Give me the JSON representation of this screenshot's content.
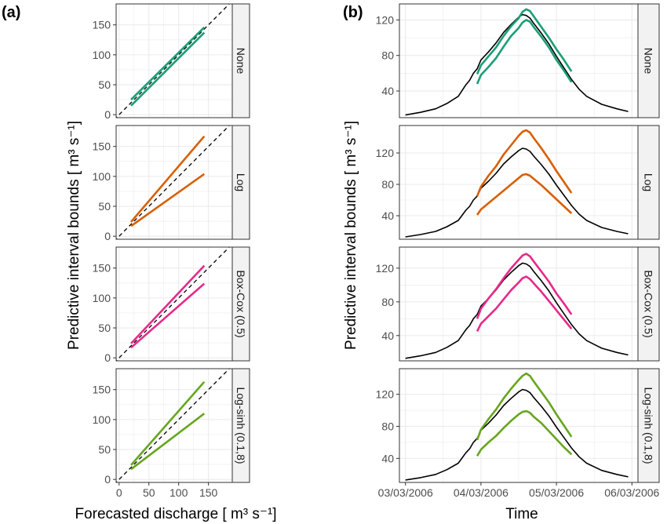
{
  "panel_a_label": "(a)",
  "panel_b_label": "(b)",
  "y_title": "Predictive interval bounds [ m³ s⁻¹]",
  "a_x_title": "Forecasted discharge [ m³ s⁻¹]",
  "b_x_title": "Time",
  "colors": {
    "None": "#1b9e77",
    "Log": "#d95f02",
    "Box-Cox (0.5)": "#e7298a",
    "Log-sinh (0.1,8)": "#66a61e",
    "observed": "#000000",
    "identity": "#000000",
    "grid": "#ebebeb",
    "border": "#333333",
    "strip_fill": "#f2f2f2"
  },
  "chart_data": [
    {
      "type": "line",
      "panel": "(a)",
      "xlabel": "Forecasted discharge [ m³ s⁻¹]",
      "ylabel": "Predictive interval bounds [ m³ s⁻¹]",
      "xlim": [
        -5,
        190
      ],
      "ylim": [
        -5,
        185
      ],
      "x_ticks": [
        0,
        50,
        100,
        150
      ],
      "y_ticks": [
        0,
        50,
        100,
        150
      ],
      "grid": true,
      "reference_line": "dashed 1:1 identity",
      "facets": [
        {
          "name": "None",
          "series": [
            {
              "name": "upper",
              "x": [
                20,
                143
              ],
              "y": [
                25,
                146
              ]
            },
            {
              "name": "lower",
              "x": [
                20,
                143
              ],
              "y": [
                15,
                137
              ]
            }
          ]
        },
        {
          "name": "Log",
          "series": [
            {
              "name": "upper",
              "x": [
                20,
                143
              ],
              "y": [
                24,
                167
              ]
            },
            {
              "name": "lower",
              "x": [
                20,
                143
              ],
              "y": [
                17,
                104
              ]
            }
          ]
        },
        {
          "name": "Box-Cox (0.5)",
          "series": [
            {
              "name": "upper",
              "x": [
                20,
                143
              ],
              "y": [
                24,
                154
              ]
            },
            {
              "name": "lower",
              "x": [
                20,
                143
              ],
              "y": [
                17,
                124
              ]
            }
          ]
        },
        {
          "name": "Log-sinh (0.1,8)",
          "series": [
            {
              "name": "upper",
              "x": [
                20,
                143
              ],
              "y": [
                24,
                163
              ]
            },
            {
              "name": "lower",
              "x": [
                20,
                143
              ],
              "y": [
                17,
                110
              ]
            }
          ]
        }
      ]
    },
    {
      "type": "line",
      "panel": "(b)",
      "xlabel": "Time",
      "ylabel": "Predictive interval bounds [ m³ s⁻¹]",
      "x_unit": "days since 03/03/2006",
      "xlim": [
        -0.08,
        3.08
      ],
      "x_ticks": [
        0,
        1,
        2,
        3
      ],
      "x_tick_labels": [
        "03/03/2006",
        "04/03/2006",
        "05/03/2006",
        "06/03/2006"
      ],
      "grid": true,
      "observed": {
        "x": [
          0,
          0.2,
          0.4,
          0.55,
          0.7,
          0.8,
          0.85,
          0.9,
          0.95,
          1.0,
          1.1,
          1.2,
          1.3,
          1.4,
          1.5,
          1.55,
          1.6,
          1.65,
          1.7,
          1.8,
          1.9,
          2.0,
          2.1,
          2.2,
          2.3,
          2.4,
          2.6,
          2.8,
          2.95
        ],
        "y": [
          13,
          16,
          20,
          26,
          34,
          47,
          52,
          60,
          65,
          75,
          84,
          94,
          106,
          115,
          123,
          126,
          125,
          122,
          116,
          105,
          93,
          79,
          66,
          53,
          42,
          34,
          25,
          20,
          17
        ]
      },
      "facets": [
        {
          "name": "None",
          "ylim": [
            10,
            138
          ],
          "y_ticks": [
            40,
            80,
            120
          ],
          "series": [
            {
              "name": "upper",
              "x": [
                0.95,
                1.0,
                1.1,
                1.2,
                1.3,
                1.4,
                1.5,
                1.55,
                1.6,
                1.65,
                1.7,
                1.8,
                1.9,
                2.0,
                2.1,
                2.2
              ],
              "y": [
                59,
                69,
                79,
                89,
                102,
                113,
                122,
                129,
                132,
                130,
                124,
                112,
                100,
                87,
                75,
                62
              ]
            },
            {
              "name": "lower",
              "x": [
                0.95,
                1.0,
                1.1,
                1.2,
                1.3,
                1.4,
                1.5,
                1.55,
                1.6,
                1.65,
                1.7,
                1.8,
                1.9,
                2.0,
                2.1,
                2.2
              ],
              "y": [
                48,
                58,
                67,
                77,
                90,
                102,
                111,
                117,
                120,
                118,
                112,
                101,
                89,
                75,
                63,
                50
              ]
            }
          ]
        },
        {
          "name": "Log",
          "ylim": [
            10,
            155
          ],
          "y_ticks": [
            40,
            80,
            120
          ],
          "series": [
            {
              "name": "upper",
              "x": [
                0.95,
                1.0,
                1.1,
                1.2,
                1.3,
                1.4,
                1.5,
                1.55,
                1.6,
                1.65,
                1.7,
                1.8,
                1.9,
                2.0,
                2.1,
                2.2
              ],
              "y": [
                65,
                77,
                91,
                103,
                118,
                130,
                142,
                147,
                149,
                146,
                139,
                126,
                112,
                97,
                83,
                69
              ]
            },
            {
              "name": "lower",
              "x": [
                0.95,
                1.0,
                1.1,
                1.2,
                1.3,
                1.4,
                1.5,
                1.55,
                1.6,
                1.65,
                1.7,
                1.8,
                1.9,
                2.0,
                2.1,
                2.2
              ],
              "y": [
                41,
                48,
                56,
                64,
                72,
                80,
                88,
                92,
                93,
                91,
                87,
                79,
                70,
                61,
                52,
                43
              ]
            }
          ]
        },
        {
          "name": "Box-Cox (0.5)",
          "ylim": [
            10,
            145
          ],
          "y_ticks": [
            40,
            80,
            120
          ],
          "series": [
            {
              "name": "upper",
              "x": [
                0.95,
                1.0,
                1.1,
                1.2,
                1.3,
                1.4,
                1.5,
                1.55,
                1.6,
                1.65,
                1.7,
                1.8,
                1.9,
                2.0,
                2.1,
                2.2
              ],
              "y": [
                60,
                72,
                84,
                95,
                108,
                120,
                130,
                135,
                137,
                134,
                128,
                116,
                104,
                90,
                78,
                65
              ]
            },
            {
              "name": "lower",
              "x": [
                0.95,
                1.0,
                1.1,
                1.2,
                1.3,
                1.4,
                1.5,
                1.55,
                1.6,
                1.65,
                1.7,
                1.8,
                1.9,
                2.0,
                2.1,
                2.2
              ],
              "y": [
                45,
                54,
                63,
                72,
                83,
                94,
                103,
                108,
                110,
                107,
                102,
                92,
                81,
                70,
                59,
                48
              ]
            }
          ]
        },
        {
          "name": "Log-sinh (0.1,8)",
          "ylim": [
            10,
            152
          ],
          "y_ticks": [
            40,
            80,
            120
          ],
          "series": [
            {
              "name": "upper",
              "x": [
                0.95,
                1.0,
                1.1,
                1.2,
                1.3,
                1.4,
                1.5,
                1.55,
                1.6,
                1.65,
                1.7,
                1.8,
                1.9,
                2.0,
                2.1,
                2.2
              ],
              "y": [
                63,
                76,
                89,
                101,
                115,
                127,
                138,
                143,
                146,
                143,
                136,
                123,
                110,
                95,
                81,
                67
              ]
            },
            {
              "name": "lower",
              "x": [
                0.95,
                1.0,
                1.1,
                1.2,
                1.3,
                1.4,
                1.5,
                1.55,
                1.6,
                1.65,
                1.7,
                1.8,
                1.9,
                2.0,
                2.1,
                2.2
              ],
              "y": [
                43,
                51,
                60,
                68,
                78,
                87,
                95,
                98,
                99,
                97,
                92,
                84,
                74,
                64,
                54,
                45
              ]
            }
          ]
        }
      ]
    }
  ]
}
